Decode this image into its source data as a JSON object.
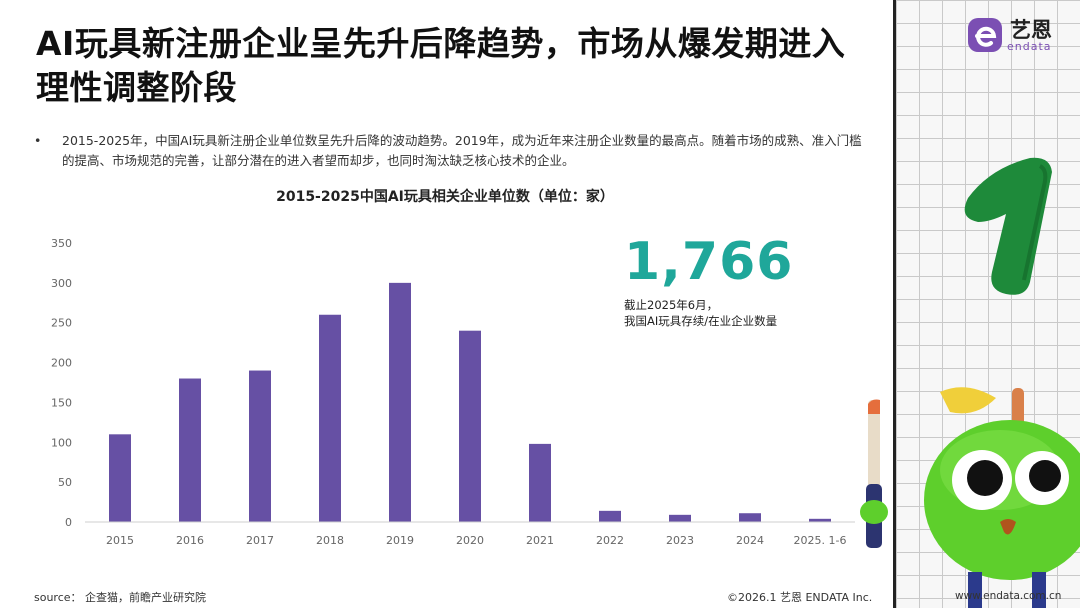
{
  "title": "AI玩具新注册企业呈先升后降趋势，市场从爆发期进入理性调整阶段",
  "bullet_marker": "•",
  "bullet_text": "2015-2025年，中国AI玩具新注册企业单位数呈先升后降的波动趋势。2019年，成为近年来注册企业数量的最高点。随着市场的成熟、准入门槛的提高、市场规范的完善，让部分潜在的进入者望而却步，也同时淘汰缺乏核心技术的企业。",
  "highlight": {
    "value": "1,766",
    "note_line1": "截止2025年6月，",
    "note_line2": "我国AI玩具存续/在业企业数量"
  },
  "footer": {
    "source": "source： 企查猫，前瞻产业研究院",
    "copyright": "©2026.1  艺恩 ENDATA Inc.",
    "website": "www.endata.com.cn"
  },
  "logo": {
    "cn": "艺恩",
    "en": "endata"
  },
  "decoration": {
    "number_glyph": "1"
  },
  "colors": {
    "bar": "#6650a4",
    "accent": "#1fa79a",
    "logo_purple": "#7b4fb3"
  },
  "chart_data": {
    "type": "bar",
    "title": "2015-2025中国AI玩具相关企业单位数（单位：家）",
    "categories": [
      "2015",
      "2016",
      "2017",
      "2018",
      "2019",
      "2020",
      "2021",
      "2022",
      "2023",
      "2024",
      "2025. 1-6"
    ],
    "values": [
      110,
      180,
      190,
      260,
      300,
      240,
      98,
      14,
      9,
      11,
      4
    ],
    "ylim": [
      0,
      350
    ],
    "yticks": [
      0,
      50,
      100,
      150,
      200,
      250,
      300,
      350
    ],
    "xlabel": "",
    "ylabel": "",
    "grid": false
  }
}
